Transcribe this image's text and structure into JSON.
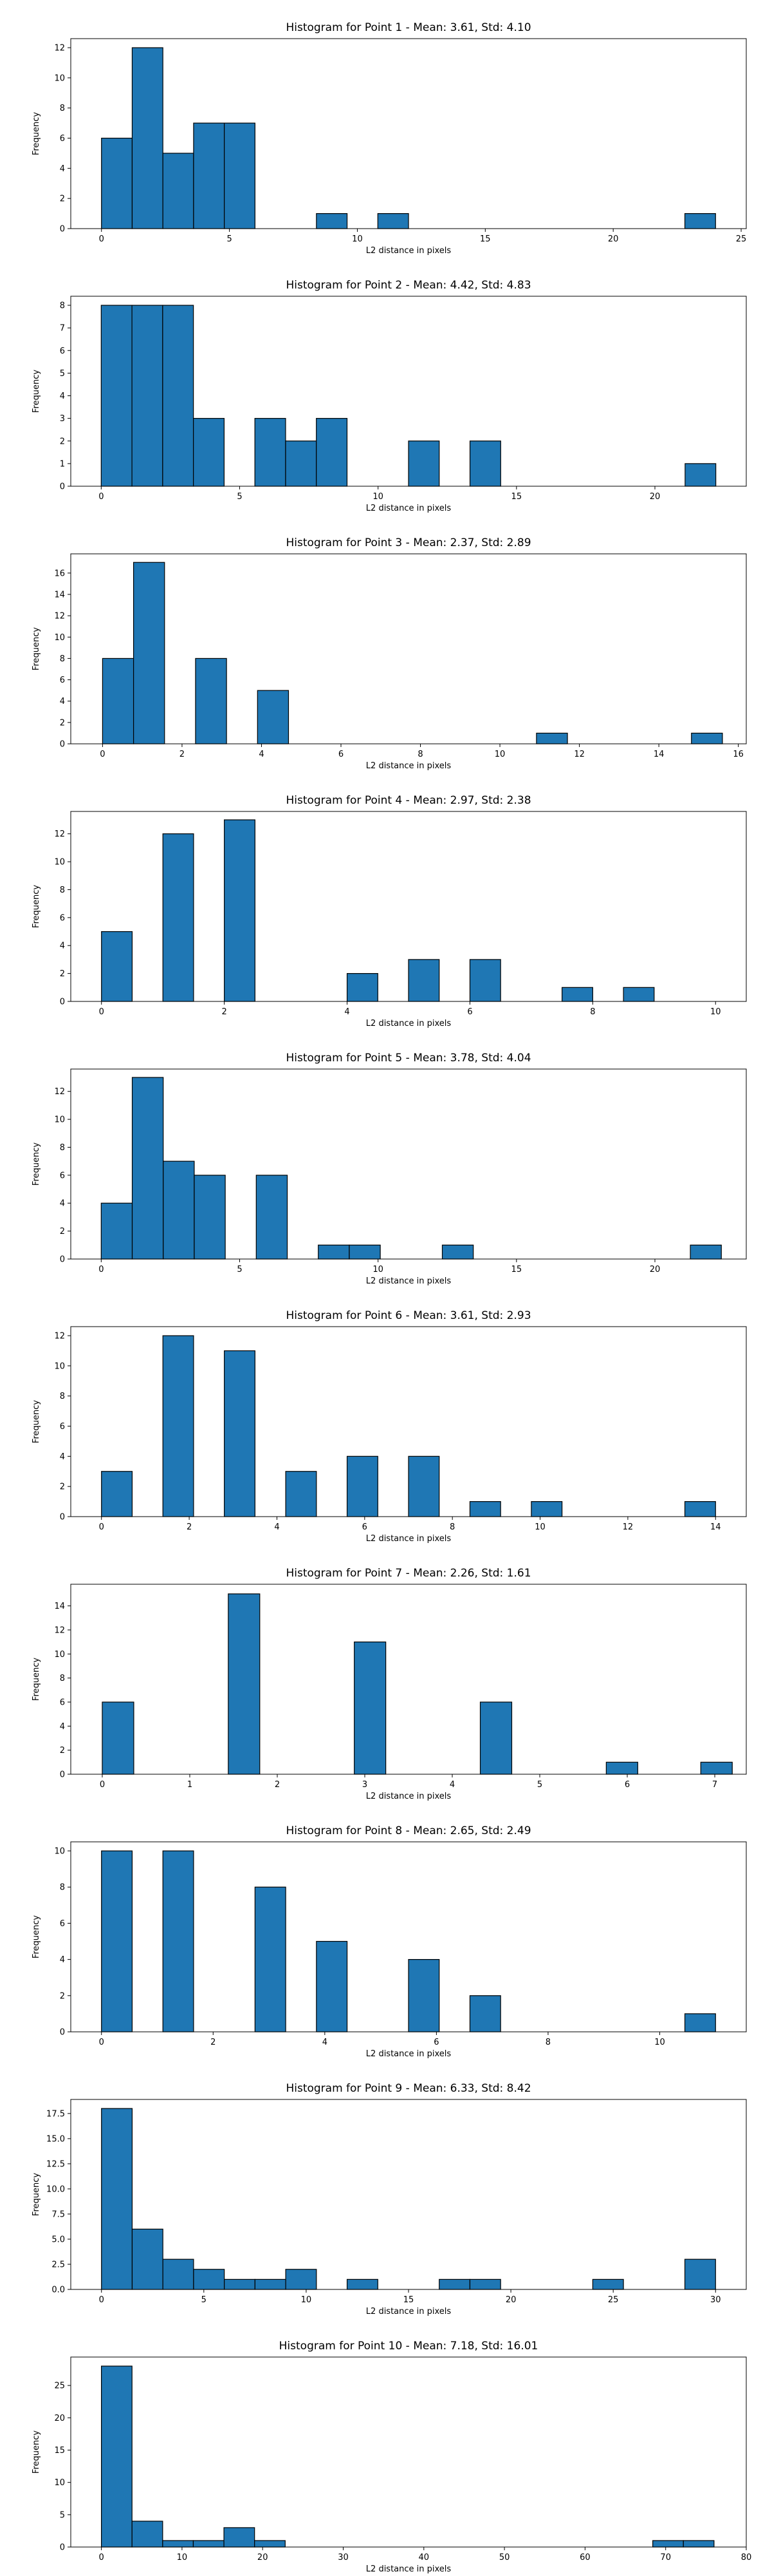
{
  "chart_data": [
    {
      "type": "bar",
      "title": "Histogram for Point 1 - Mean: 3.61, Std: 4.10",
      "xlabel": "L2 distance in pixels",
      "ylabel": "Frequency",
      "xlim": [
        -1.2,
        25.2
      ],
      "ylim": [
        0,
        12.6
      ],
      "xticks": [
        0,
        5,
        10,
        15,
        20,
        25
      ],
      "yticks": [
        0,
        2,
        4,
        6,
        8,
        10,
        12
      ],
      "bin_width": 1.2,
      "bins": [
        [
          0.0,
          6
        ],
        [
          1.2,
          12
        ],
        [
          2.4,
          5
        ],
        [
          3.6,
          7
        ],
        [
          4.8,
          7
        ],
        [
          8.4,
          1
        ],
        [
          10.8,
          1
        ],
        [
          22.8,
          1
        ]
      ]
    },
    {
      "type": "bar",
      "title": "Histogram for Point 2 - Mean: 4.42, Std: 4.83",
      "xlabel": "L2 distance in pixels",
      "ylabel": "Frequency",
      "xlim": [
        -1.1,
        23.3
      ],
      "ylim": [
        0,
        8.4
      ],
      "xticks": [
        0,
        5,
        10,
        15,
        20
      ],
      "yticks": [
        0,
        1,
        2,
        3,
        4,
        5,
        6,
        7,
        8
      ],
      "bin_width": 1.11,
      "bins": [
        [
          0.0,
          8
        ],
        [
          1.11,
          8
        ],
        [
          2.22,
          8
        ],
        [
          3.33,
          3
        ],
        [
          5.55,
          3
        ],
        [
          6.66,
          2
        ],
        [
          7.77,
          3
        ],
        [
          11.1,
          2
        ],
        [
          13.32,
          2
        ],
        [
          21.09,
          1
        ]
      ]
    },
    {
      "type": "bar",
      "title": "Histogram for Point 3 - Mean: 2.37, Std: 2.89",
      "xlabel": "L2 distance in pixels",
      "ylabel": "Frequency",
      "xlim": [
        -0.8,
        16.2
      ],
      "ylim": [
        0,
        17.8
      ],
      "xticks": [
        0,
        2,
        4,
        6,
        8,
        10,
        12,
        14,
        16
      ],
      "yticks": [
        0,
        2,
        4,
        6,
        8,
        10,
        12,
        14,
        16
      ],
      "bin_width": 0.78,
      "bins": [
        [
          0.0,
          8
        ],
        [
          0.78,
          17
        ],
        [
          2.34,
          8
        ],
        [
          3.9,
          5
        ],
        [
          10.92,
          1
        ],
        [
          14.82,
          1
        ]
      ]
    },
    {
      "type": "bar",
      "title": "Histogram for Point 4 - Mean: 2.97, Std: 2.38",
      "xlabel": "L2 distance in pixels",
      "ylabel": "Frequency",
      "xlim": [
        -0.5,
        10.5
      ],
      "ylim": [
        0,
        13.6
      ],
      "xticks": [
        0,
        2,
        4,
        6,
        8,
        10
      ],
      "yticks": [
        0,
        2,
        4,
        6,
        8,
        10,
        12
      ],
      "bin_width": 0.5,
      "bins": [
        [
          0.0,
          5
        ],
        [
          1.0,
          12
        ],
        [
          2.0,
          13
        ],
        [
          4.0,
          2
        ],
        [
          5.0,
          3
        ],
        [
          6.0,
          3
        ],
        [
          7.5,
          1
        ],
        [
          8.5,
          1
        ]
      ]
    },
    {
      "type": "bar",
      "title": "Histogram for Point 5 - Mean: 3.78, Std: 4.04",
      "xlabel": "L2 distance in pixels",
      "ylabel": "Frequency",
      "xlim": [
        -1.1,
        23.3
      ],
      "ylim": [
        0,
        13.6
      ],
      "xticks": [
        0,
        5,
        10,
        15,
        20
      ],
      "yticks": [
        0,
        2,
        4,
        6,
        8,
        10,
        12
      ],
      "bin_width": 1.12,
      "bins": [
        [
          0.0,
          4
        ],
        [
          1.12,
          13
        ],
        [
          2.24,
          7
        ],
        [
          3.36,
          6
        ],
        [
          5.6,
          6
        ],
        [
          7.84,
          1
        ],
        [
          8.96,
          1
        ],
        [
          12.32,
          1
        ],
        [
          21.28,
          1
        ]
      ]
    },
    {
      "type": "bar",
      "title": "Histogram for Point 6 - Mean: 3.61, Std: 2.93",
      "xlabel": "L2 distance in pixels",
      "ylabel": "Frequency",
      "xlim": [
        -0.7,
        14.7
      ],
      "ylim": [
        0,
        12.6
      ],
      "xticks": [
        0,
        2,
        4,
        6,
        8,
        10,
        12,
        14
      ],
      "yticks": [
        0,
        2,
        4,
        6,
        8,
        10,
        12
      ],
      "bin_width": 0.7,
      "bins": [
        [
          0.0,
          3
        ],
        [
          1.4,
          12
        ],
        [
          2.8,
          11
        ],
        [
          4.2,
          3
        ],
        [
          5.6,
          4
        ],
        [
          7.0,
          4
        ],
        [
          8.4,
          1
        ],
        [
          9.8,
          1
        ],
        [
          13.3,
          1
        ]
      ]
    },
    {
      "type": "bar",
      "title": "Histogram for Point 7 - Mean: 2.26, Std: 1.61",
      "xlabel": "L2 distance in pixels",
      "ylabel": "Frequency",
      "xlim": [
        -0.36,
        7.36
      ],
      "ylim": [
        0,
        15.8
      ],
      "xticks": [
        0,
        1,
        2,
        3,
        4,
        5,
        6,
        7
      ],
      "yticks": [
        0,
        2,
        4,
        6,
        8,
        10,
        12,
        14
      ],
      "bin_width": 0.36,
      "bins": [
        [
          0.0,
          6
        ],
        [
          1.44,
          15
        ],
        [
          2.88,
          11
        ],
        [
          4.32,
          6
        ],
        [
          5.76,
          1
        ],
        [
          6.84,
          1
        ]
      ]
    },
    {
      "type": "bar",
      "title": "Histogram for Point 8 - Mean: 2.65, Std: 2.49",
      "xlabel": "L2 distance in pixels",
      "ylabel": "Frequency",
      "xlim": [
        -0.55,
        11.55
      ],
      "ylim": [
        0,
        10.5
      ],
      "xticks": [
        0,
        2,
        4,
        6,
        8,
        10
      ],
      "yticks": [
        0,
        2,
        4,
        6,
        8,
        10
      ],
      "bin_width": 0.55,
      "bins": [
        [
          0.0,
          10
        ],
        [
          1.1,
          10
        ],
        [
          2.75,
          8
        ],
        [
          3.85,
          5
        ],
        [
          5.5,
          4
        ],
        [
          6.6,
          2
        ],
        [
          10.45,
          1
        ]
      ]
    },
    {
      "type": "bar",
      "title": "Histogram for Point 9 - Mean: 6.33, Std: 8.42",
      "xlabel": "L2 distance in pixels",
      "ylabel": "Frequency",
      "xlim": [
        -1.5,
        31.5
      ],
      "ylim": [
        0,
        18.9
      ],
      "xticks": [
        0,
        5,
        10,
        15,
        20,
        25,
        30
      ],
      "yticks": [
        "0.0",
        "2.5",
        "5.0",
        "7.5",
        "10.0",
        "12.5",
        "15.0",
        "17.5"
      ],
      "bin_width": 1.5,
      "bins": [
        [
          0.0,
          18
        ],
        [
          1.5,
          6
        ],
        [
          3.0,
          3
        ],
        [
          4.5,
          2
        ],
        [
          6.0,
          1
        ],
        [
          7.5,
          1
        ],
        [
          9.0,
          2
        ],
        [
          12.0,
          1
        ],
        [
          16.5,
          1
        ],
        [
          18.0,
          1
        ],
        [
          24.0,
          1
        ],
        [
          28.5,
          3
        ]
      ]
    },
    {
      "type": "bar",
      "title": "Histogram for Point 10 - Mean: 7.18, Std: 16.01",
      "xlabel": "L2 distance in pixels",
      "ylabel": "Frequency",
      "xlim": [
        -3.8,
        80
      ],
      "ylim": [
        0,
        29.4
      ],
      "xticks": [
        0,
        10,
        20,
        30,
        40,
        50,
        60,
        70,
        80
      ],
      "yticks": [
        0,
        5,
        10,
        15,
        20,
        25
      ],
      "bin_width": 3.8,
      "bins": [
        [
          0.0,
          28
        ],
        [
          3.8,
          4
        ],
        [
          7.6,
          1
        ],
        [
          11.4,
          1
        ],
        [
          15.2,
          3
        ],
        [
          19.0,
          1
        ],
        [
          68.4,
          1
        ],
        [
          72.2,
          1
        ]
      ]
    }
  ]
}
